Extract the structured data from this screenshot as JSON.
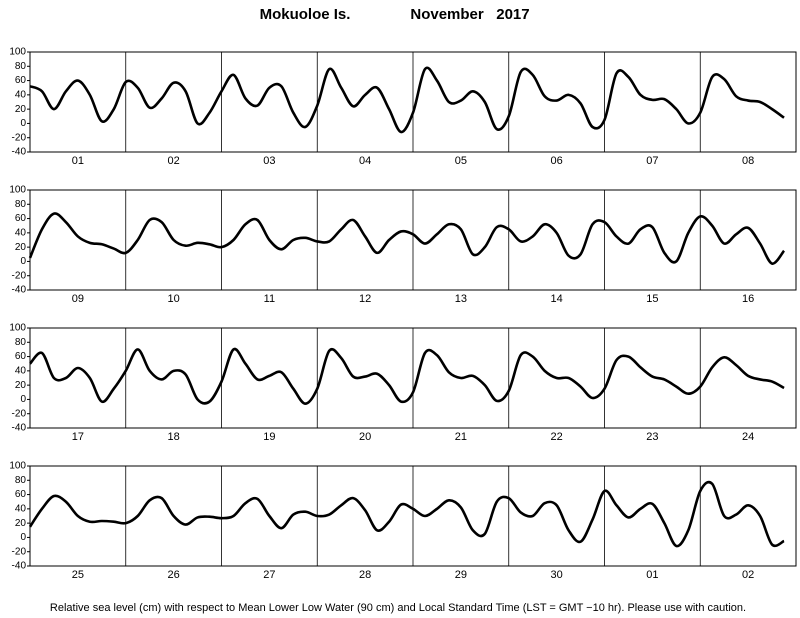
{
  "header": {
    "station": "Mokuoloe Is.",
    "month_year": "November   2017"
  },
  "chart_data": [
    {
      "type": "line",
      "color": "#000000",
      "categories": [
        "01",
        "02",
        "03",
        "04",
        "05",
        "06",
        "07",
        "08"
      ],
      "values": [
        [
          52,
          45,
          20,
          45,
          60,
          40,
          3,
          20
        ],
        [
          58,
          50,
          22,
          35,
          57,
          45,
          0,
          15
        ],
        [
          45,
          68,
          35,
          25,
          50,
          52,
          15,
          -5
        ],
        [
          25,
          76,
          50,
          24,
          40,
          50,
          20,
          -12
        ],
        [
          15,
          76,
          60,
          30,
          32,
          45,
          30,
          -8
        ],
        [
          10,
          72,
          68,
          38,
          32,
          40,
          28,
          -5
        ],
        [
          5,
          70,
          65,
          40,
          33,
          34,
          20,
          0
        ],
        [
          15,
          65,
          62,
          38,
          32,
          30,
          20,
          8
        ]
      ],
      "ylim": [
        -40,
        100
      ],
      "yticks": [
        -40,
        -20,
        0,
        20,
        40,
        60,
        80,
        100
      ]
    },
    {
      "type": "line",
      "color": "#000000",
      "categories": [
        "09",
        "10",
        "11",
        "12",
        "13",
        "14",
        "15",
        "16"
      ],
      "values": [
        [
          5,
          45,
          67,
          55,
          35,
          26,
          24,
          18
        ],
        [
          12,
          30,
          58,
          55,
          30,
          22,
          26,
          24
        ],
        [
          20,
          30,
          52,
          58,
          30,
          17,
          30,
          33
        ],
        [
          28,
          28,
          45,
          58,
          35,
          12,
          30,
          42
        ],
        [
          38,
          25,
          38,
          52,
          45,
          10,
          20,
          48
        ],
        [
          45,
          28,
          35,
          52,
          40,
          8,
          10,
          52
        ],
        [
          55,
          35,
          25,
          45,
          48,
          12,
          0,
          40
        ],
        [
          63,
          50,
          25,
          38,
          47,
          25,
          -3,
          15
        ]
      ],
      "ylim": [
        -40,
        100
      ],
      "yticks": [
        -40,
        -20,
        0,
        20,
        40,
        60,
        80,
        100
      ]
    },
    {
      "type": "line",
      "color": "#000000",
      "categories": [
        "17",
        "18",
        "19",
        "20",
        "21",
        "22",
        "23",
        "24"
      ],
      "values": [
        [
          50,
          65,
          30,
          30,
          44,
          30,
          -3,
          15
        ],
        [
          40,
          70,
          40,
          28,
          40,
          35,
          0,
          -3
        ],
        [
          25,
          70,
          50,
          28,
          33,
          38,
          15,
          -6
        ],
        [
          15,
          68,
          58,
          32,
          32,
          36,
          20,
          -3
        ],
        [
          10,
          65,
          62,
          38,
          30,
          33,
          20,
          -2
        ],
        [
          12,
          62,
          60,
          40,
          30,
          30,
          18,
          2
        ],
        [
          15,
          55,
          60,
          45,
          32,
          28,
          18,
          8
        ],
        [
          18,
          45,
          59,
          48,
          33,
          28,
          25,
          16
        ]
      ],
      "ylim": [
        -40,
        100
      ],
      "yticks": [
        -40,
        -20,
        0,
        20,
        40,
        60,
        80,
        100
      ]
    },
    {
      "type": "line",
      "color": "#000000",
      "categories": [
        "25",
        "26",
        "27",
        "28",
        "29",
        "30",
        "01",
        "02"
      ],
      "values": [
        [
          15,
          40,
          58,
          50,
          30,
          22,
          23,
          22
        ],
        [
          20,
          30,
          52,
          55,
          30,
          18,
          28,
          29
        ],
        [
          27,
          30,
          48,
          54,
          30,
          13,
          32,
          36
        ],
        [
          30,
          32,
          45,
          55,
          38,
          10,
          22,
          46
        ],
        [
          40,
          30,
          40,
          52,
          42,
          10,
          5,
          50
        ],
        [
          55,
          35,
          30,
          48,
          45,
          10,
          -6,
          25
        ],
        [
          65,
          45,
          28,
          40,
          47,
          20,
          -12,
          10
        ],
        [
          65,
          75,
          30,
          32,
          45,
          30,
          -10,
          -5
        ]
      ],
      "ylim": [
        -40,
        100
      ],
      "yticks": [
        -40,
        -20,
        0,
        20,
        40,
        60,
        80,
        100
      ]
    }
  ],
  "footer": {
    "note": "Relative sea level (cm) with respect to Mean Lower Low Water (90 cm) and Local Standard Time (LST = GMT −10 hr). Please use with caution."
  }
}
